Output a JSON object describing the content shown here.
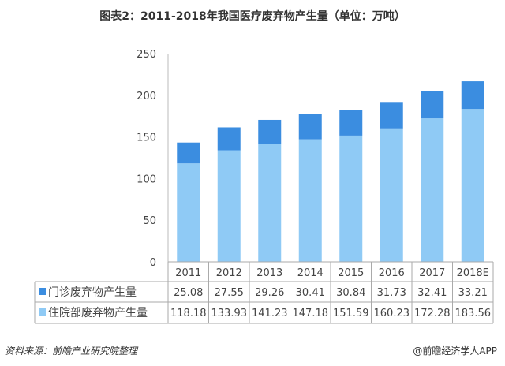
{
  "title": "图表2：2011-2018年我国医疗废弃物产生量（单位：万吨）",
  "chart_data": {
    "type": "bar",
    "stacked": true,
    "title": "图表2：2011-2018年我国医疗废弃物产生量（单位：万吨）",
    "categories": [
      "2011",
      "2012",
      "2013",
      "2014",
      "2015",
      "2016",
      "2017",
      "2018E"
    ],
    "ylim": [
      0,
      250
    ],
    "yticks": [
      "0",
      "50",
      "100",
      "150",
      "200",
      "250"
    ],
    "grid": false,
    "legend": "table-left",
    "series": [
      {
        "name": "门诊废弃物产生量",
        "color": "#3b8de0",
        "values": [
          "25.08",
          "27.55",
          "29.26",
          "30.41",
          "30.84",
          "31.73",
          "32.41",
          "33.21"
        ]
      },
      {
        "name": "住院部废弃物产生量",
        "color": "#8fcaf5",
        "values": [
          "118.18",
          "133.93",
          "141.23",
          "147.18",
          "151.59",
          "160.23",
          "172.28",
          "183.56"
        ]
      }
    ]
  },
  "footer": {
    "source": "资料来源：前瞻产业研究院整理",
    "brand": "@前瞻经济学人APP"
  }
}
